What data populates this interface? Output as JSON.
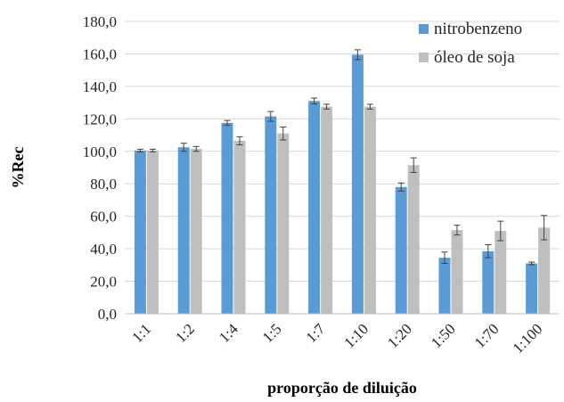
{
  "chart_data": {
    "type": "bar",
    "xlabel": "proporção de diluição",
    "ylabel": "%Rec",
    "ylim": [
      0,
      180
    ],
    "ytick_step": 20,
    "ytick_labels": [
      "0,0",
      "20,0",
      "40,0",
      "60,0",
      "80,0",
      "100,0",
      "120,0",
      "140,0",
      "160,0",
      "180,0"
    ],
    "grid": true,
    "legend_position": "top-right",
    "categories": [
      "1:1",
      "1:2",
      "1:4",
      "1:5",
      "1:7",
      "1:10",
      "1:20",
      "1:50",
      "1:70",
      "1:100"
    ],
    "series": [
      {
        "name": "nitrobenzeno",
        "color": "#5b9bd5",
        "values": [
          100.5,
          102.5,
          117.5,
          121.5,
          131.0,
          159.5,
          78.0,
          34.5,
          38.5,
          31.0
        ],
        "errors": [
          0.8,
          2.5,
          1.5,
          3.0,
          1.8,
          3.0,
          2.5,
          3.5,
          4.0,
          0.8
        ]
      },
      {
        "name": "óleo de soja",
        "color": "#bfbfbf",
        "values": [
          100.5,
          101.5,
          106.5,
          111.0,
          127.5,
          127.5,
          91.5,
          51.5,
          51.0,
          53.0
        ],
        "errors": [
          0.8,
          1.5,
          2.5,
          4.0,
          1.5,
          1.5,
          4.5,
          3.0,
          6.0,
          7.5
        ]
      }
    ]
  }
}
